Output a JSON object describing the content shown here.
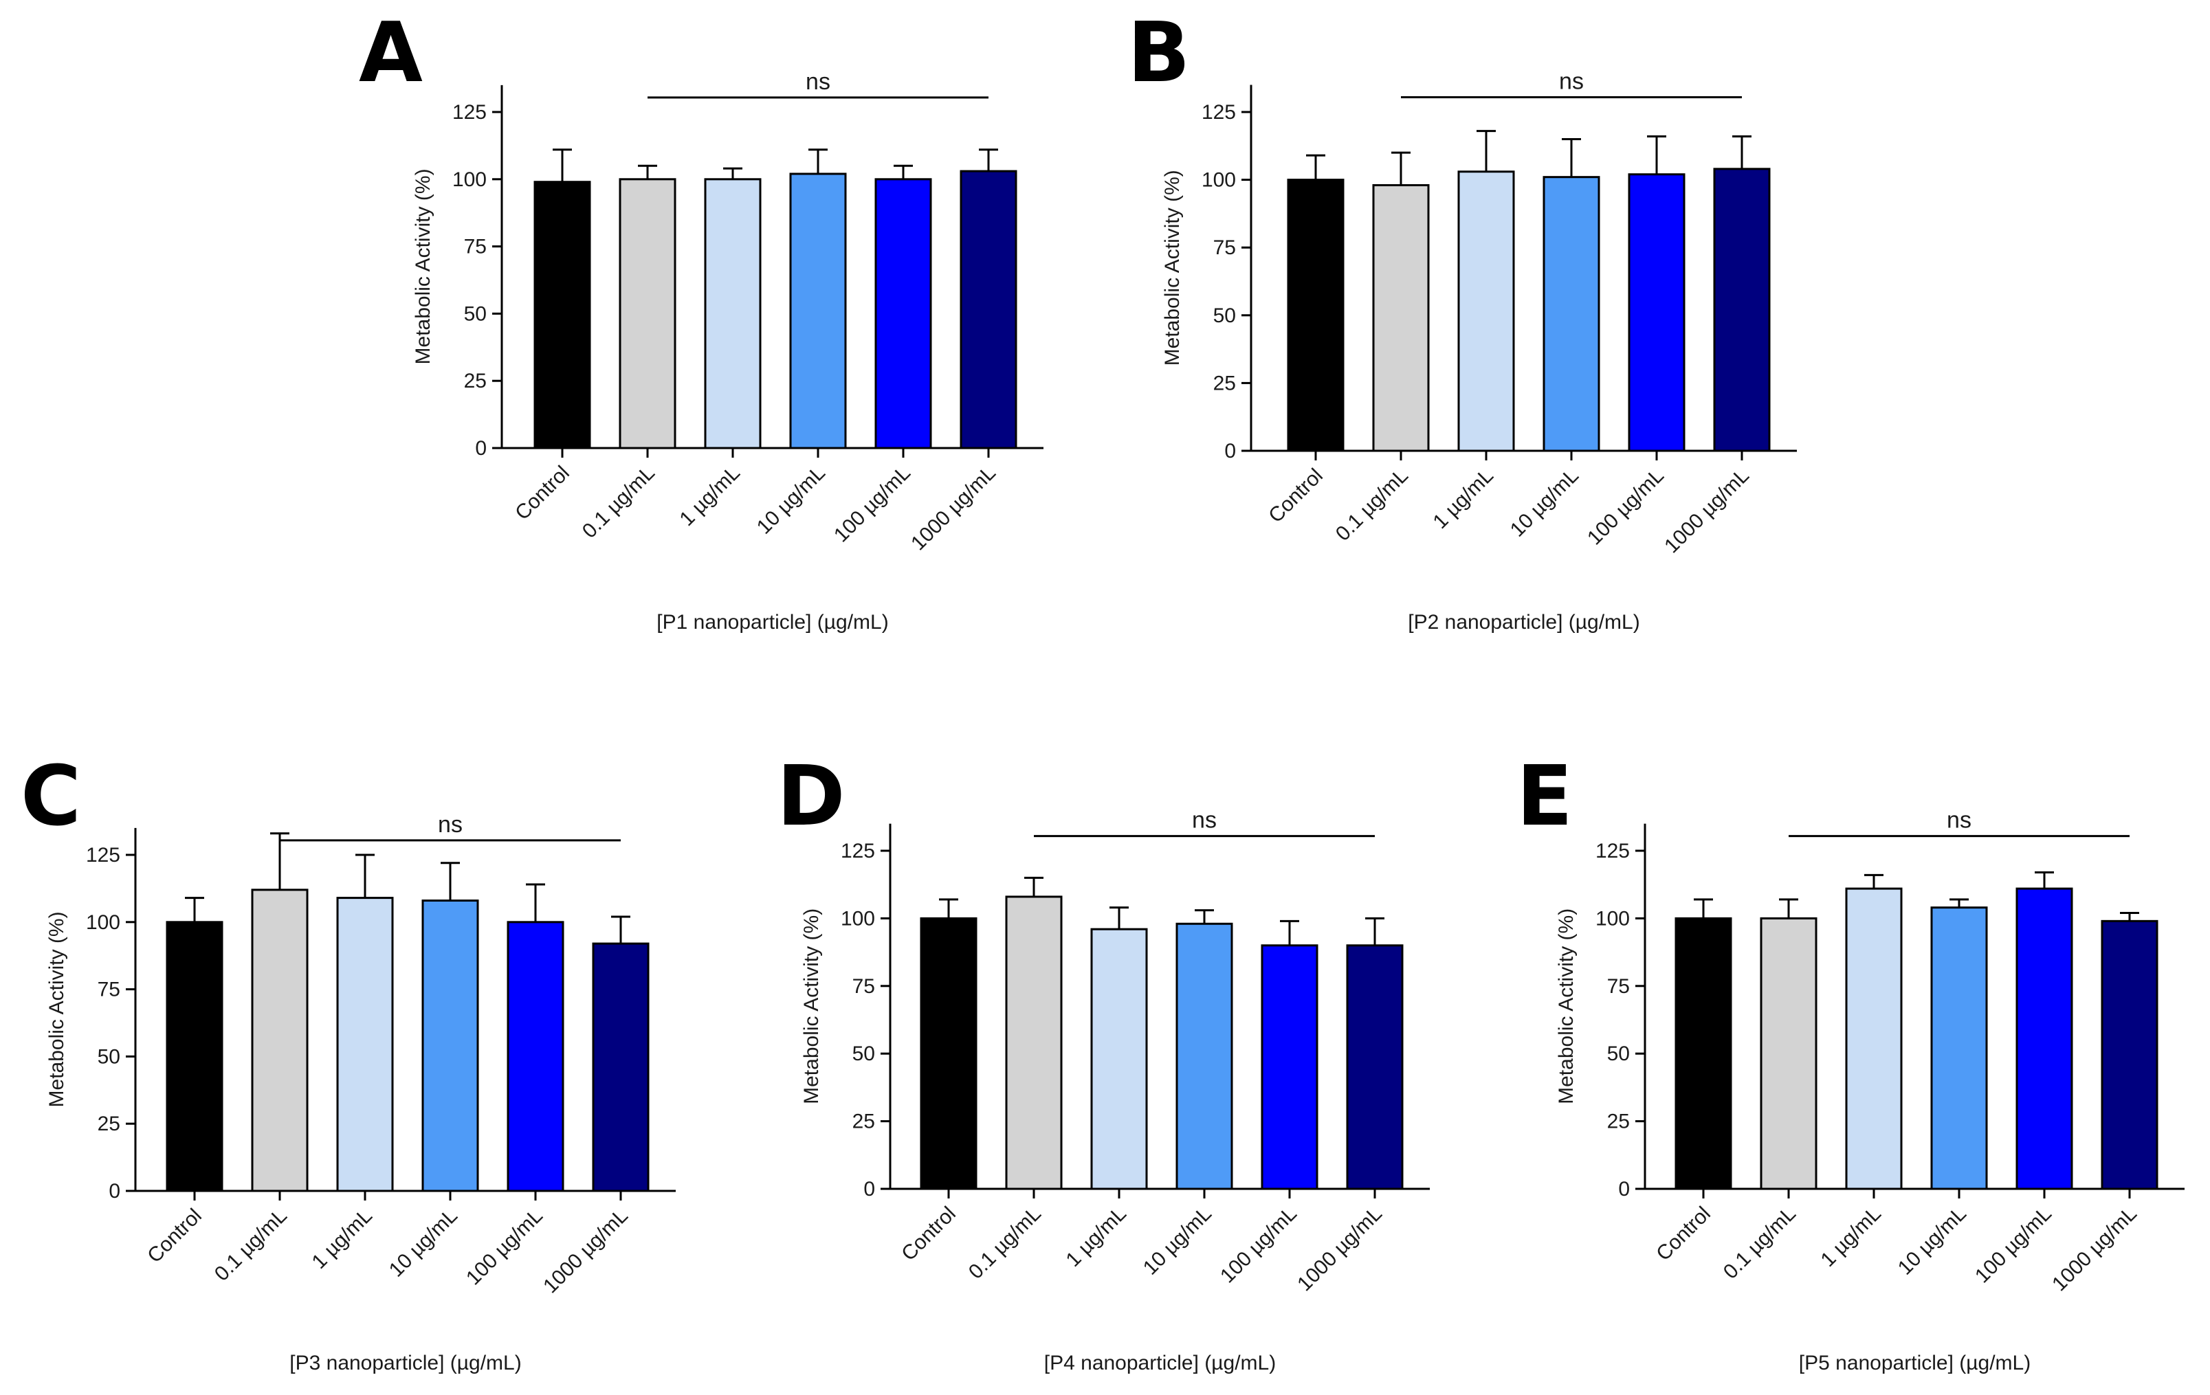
{
  "chart_data": [
    {
      "type": "bar",
      "panel": "A",
      "categories": [
        "Control",
        "0.1 µg/mL",
        "1 µg/mL",
        "10 µg/mL",
        "100 µg/mL",
        "1000 µg/mL"
      ],
      "values": [
        99,
        100,
        100,
        102,
        100,
        103
      ],
      "errors": [
        12,
        5,
        4,
        9,
        5,
        8
      ],
      "colors": [
        "#000000",
        "#d3d3d3",
        "#c9ddf5",
        "#4f9bf7",
        "#0000ff",
        "#00007f"
      ],
      "title": "",
      "xlabel": "[P1 nanoparticle] (µg/mL)",
      "ylabel": "Metabolic Activity (%)",
      "ylim": [
        0,
        135
      ],
      "yticks": [
        0,
        25,
        50,
        75,
        100,
        125
      ],
      "significance": {
        "label": "ns",
        "from": 1,
        "to": 5
      }
    },
    {
      "type": "bar",
      "panel": "B",
      "categories": [
        "Control",
        "0.1 µg/mL",
        "1 µg/mL",
        "10 µg/mL",
        "100 µg/mL",
        "1000 µg/mL"
      ],
      "values": [
        100,
        98,
        103,
        101,
        102,
        104
      ],
      "errors": [
        9,
        12,
        15,
        14,
        14,
        12
      ],
      "colors": [
        "#000000",
        "#d3d3d3",
        "#c9ddf5",
        "#4f9bf7",
        "#0000ff",
        "#00007f"
      ],
      "title": "",
      "xlabel": "[P2 nanoparticle] (µg/mL)",
      "ylabel": "Metabolic Activity (%)",
      "ylim": [
        0,
        135
      ],
      "yticks": [
        0,
        25,
        50,
        75,
        100,
        125
      ],
      "significance": {
        "label": "ns",
        "from": 1,
        "to": 5
      }
    },
    {
      "type": "bar",
      "panel": "C",
      "categories": [
        "Control",
        "0.1 µg/mL",
        "1 µg/mL",
        "10 µg/mL",
        "100 µg/mL",
        "1000 µg/mL"
      ],
      "values": [
        100,
        112,
        109,
        108,
        100,
        92
      ],
      "errors": [
        9,
        21,
        16,
        14,
        14,
        10
      ],
      "colors": [
        "#000000",
        "#d3d3d3",
        "#c9ddf5",
        "#4f9bf7",
        "#0000ff",
        "#00007f"
      ],
      "title": "",
      "xlabel": "[P3 nanoparticle] (µg/mL)",
      "ylabel": "Metabolic Activity (%)",
      "ylim": [
        0,
        135
      ],
      "yticks": [
        0,
        25,
        50,
        75,
        100,
        125
      ],
      "significance": {
        "label": "ns",
        "from": 1,
        "to": 5
      }
    },
    {
      "type": "bar",
      "panel": "D",
      "categories": [
        "Control",
        "0.1 µg/mL",
        "1 µg/mL",
        "10 µg/mL",
        "100 µg/mL",
        "1000 µg/mL"
      ],
      "values": [
        100,
        108,
        96,
        98,
        90,
        90
      ],
      "errors": [
        7,
        7,
        8,
        5,
        9,
        10
      ],
      "colors": [
        "#000000",
        "#d3d3d3",
        "#c9ddf5",
        "#4f9bf7",
        "#0000ff",
        "#00007f"
      ],
      "title": "",
      "xlabel": "[P4 nanoparticle] (µg/mL)",
      "ylabel": "Metabolic Activity (%)",
      "ylim": [
        0,
        135
      ],
      "yticks": [
        0,
        25,
        50,
        75,
        100,
        125
      ],
      "significance": {
        "label": "ns",
        "from": 1,
        "to": 5
      }
    },
    {
      "type": "bar",
      "panel": "E",
      "categories": [
        "Control",
        "0.1 µg/mL",
        "1 µg/mL",
        "10 µg/mL",
        "100 µg/mL",
        "1000 µg/mL"
      ],
      "values": [
        100,
        100,
        111,
        104,
        111,
        99
      ],
      "errors": [
        7,
        7,
        5,
        3,
        6,
        3
      ],
      "colors": [
        "#000000",
        "#d3d3d3",
        "#c9ddf5",
        "#4f9bf7",
        "#0000ff",
        "#00007f"
      ],
      "title": "",
      "xlabel": "[P5 nanoparticle] (µg/mL)",
      "ylabel": "Metabolic Activity (%)",
      "ylim": [
        0,
        135
      ],
      "yticks": [
        0,
        25,
        50,
        75,
        100,
        125
      ],
      "significance": {
        "label": "ns",
        "from": 1,
        "to": 5
      }
    }
  ]
}
